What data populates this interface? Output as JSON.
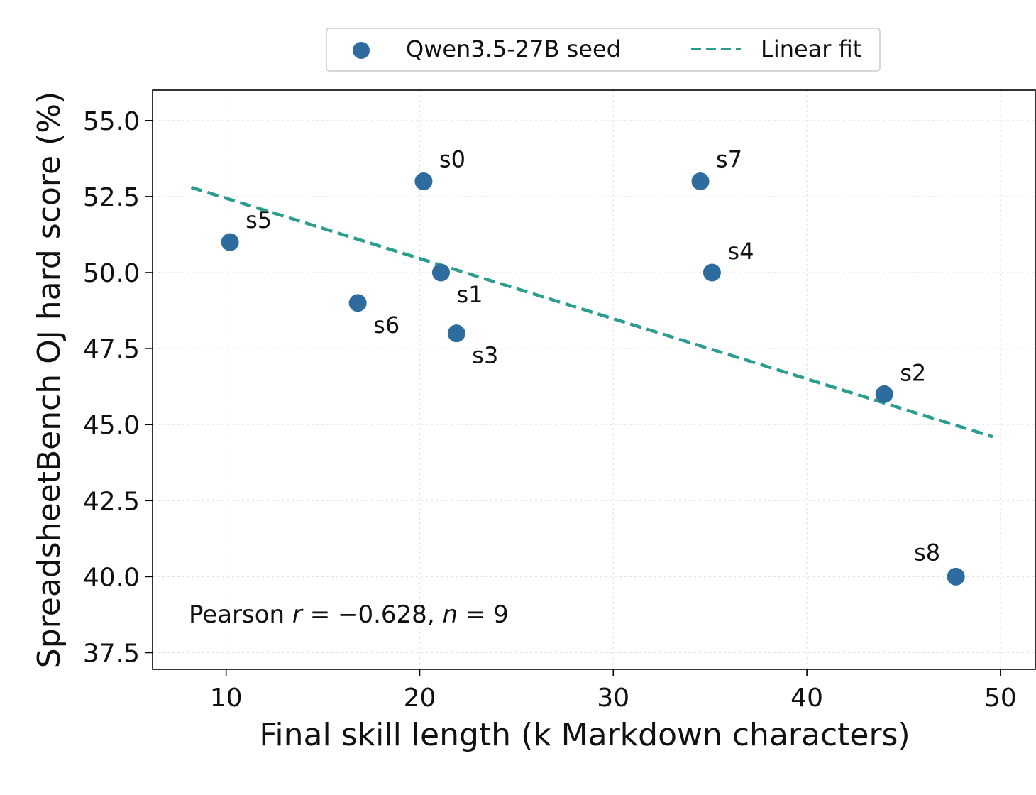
{
  "chart_data": {
    "type": "scatter",
    "xlabel": "Final skill length (k Markdown characters)",
    "ylabel": "SpreadsheetBench OJ hard score (%)",
    "xlim": [
      6.2,
      51.8
    ],
    "ylim": [
      36.95,
      56.0
    ],
    "x_ticks": [
      10,
      20,
      30,
      40,
      50
    ],
    "x_tick_labels": [
      "10",
      "20",
      "30",
      "40",
      "50"
    ],
    "y_ticks": [
      37.5,
      40.0,
      42.5,
      45.0,
      47.5,
      50.0,
      52.5,
      55.0
    ],
    "y_tick_labels": [
      "37.5",
      "40.0",
      "42.5",
      "45.0",
      "47.5",
      "50.0",
      "52.5",
      "55.0"
    ],
    "grid": true,
    "legend_position": "top-center (outside plot)",
    "series": [
      {
        "name": "Qwen3.5-27B seed",
        "kind": "scatter",
        "color": "#2e6b9e",
        "points": [
          {
            "label": "s0",
            "x": 20.2,
            "y": 53.0
          },
          {
            "label": "s1",
            "x": 21.1,
            "y": 50.0
          },
          {
            "label": "s2",
            "x": 44.0,
            "y": 46.0
          },
          {
            "label": "s3",
            "x": 21.9,
            "y": 48.0
          },
          {
            "label": "s4",
            "x": 35.1,
            "y": 50.0
          },
          {
            "label": "s5",
            "x": 10.2,
            "y": 51.0
          },
          {
            "label": "s6",
            "x": 16.8,
            "y": 49.0
          },
          {
            "label": "s7",
            "x": 34.5,
            "y": 53.0
          },
          {
            "label": "s8",
            "x": 47.7,
            "y": 40.0
          }
        ]
      },
      {
        "name": "Linear fit",
        "kind": "line",
        "style": "dashed",
        "color": "#2a9d8f",
        "x": [
          8.2,
          49.6
        ],
        "y": [
          52.8,
          44.6
        ]
      }
    ],
    "annotation": {
      "prefix": "Pearson ",
      "r_symbol": "r",
      "r_value": " = −0.628, ",
      "n_symbol": "n",
      "n_value": " = 9"
    }
  }
}
